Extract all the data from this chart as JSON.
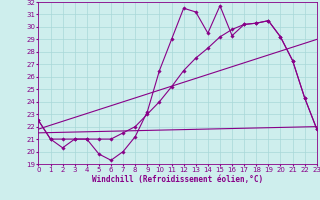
{
  "title": "",
  "xlabel": "Windchill (Refroidissement éolien,°C)",
  "ylabel": "",
  "xlim": [
    0,
    23
  ],
  "ylim": [
    19,
    32
  ],
  "yticks": [
    19,
    20,
    21,
    22,
    23,
    24,
    25,
    26,
    27,
    28,
    29,
    30,
    31,
    32
  ],
  "xticks": [
    0,
    1,
    2,
    3,
    4,
    5,
    6,
    7,
    8,
    9,
    10,
    11,
    12,
    13,
    14,
    15,
    16,
    17,
    18,
    19,
    20,
    21,
    22,
    23
  ],
  "bg_color": "#ceeeed",
  "line_color": "#880088",
  "grid_color": "#a8d8d8",
  "series1_jagged": {
    "x": [
      0,
      1,
      2,
      3,
      4,
      5,
      6,
      7,
      8,
      9,
      10,
      11,
      12,
      13,
      14,
      15,
      16,
      17,
      18,
      19,
      20,
      21,
      22,
      23
    ],
    "y": [
      22.5,
      21.0,
      20.3,
      21.0,
      21.0,
      19.8,
      19.3,
      20.0,
      21.2,
      23.2,
      26.5,
      29.0,
      31.5,
      31.2,
      29.5,
      31.7,
      29.3,
      30.2,
      30.3,
      30.5,
      29.2,
      27.3,
      24.3,
      21.8
    ]
  },
  "series2_smooth": {
    "x": [
      0,
      1,
      2,
      3,
      4,
      5,
      6,
      7,
      8,
      9,
      10,
      11,
      12,
      13,
      14,
      15,
      16,
      17,
      18,
      19,
      20,
      21,
      22,
      23
    ],
    "y": [
      22.5,
      21.0,
      21.0,
      21.0,
      21.0,
      21.0,
      21.0,
      21.5,
      22.0,
      23.0,
      24.0,
      25.2,
      26.5,
      27.5,
      28.3,
      29.2,
      29.8,
      30.2,
      30.3,
      30.5,
      29.2,
      27.3,
      24.3,
      21.8
    ]
  },
  "trend1": {
    "x": [
      0,
      23
    ],
    "y": [
      21.5,
      22.0
    ]
  },
  "trend2": {
    "x": [
      0,
      23
    ],
    "y": [
      21.8,
      29.0
    ]
  }
}
